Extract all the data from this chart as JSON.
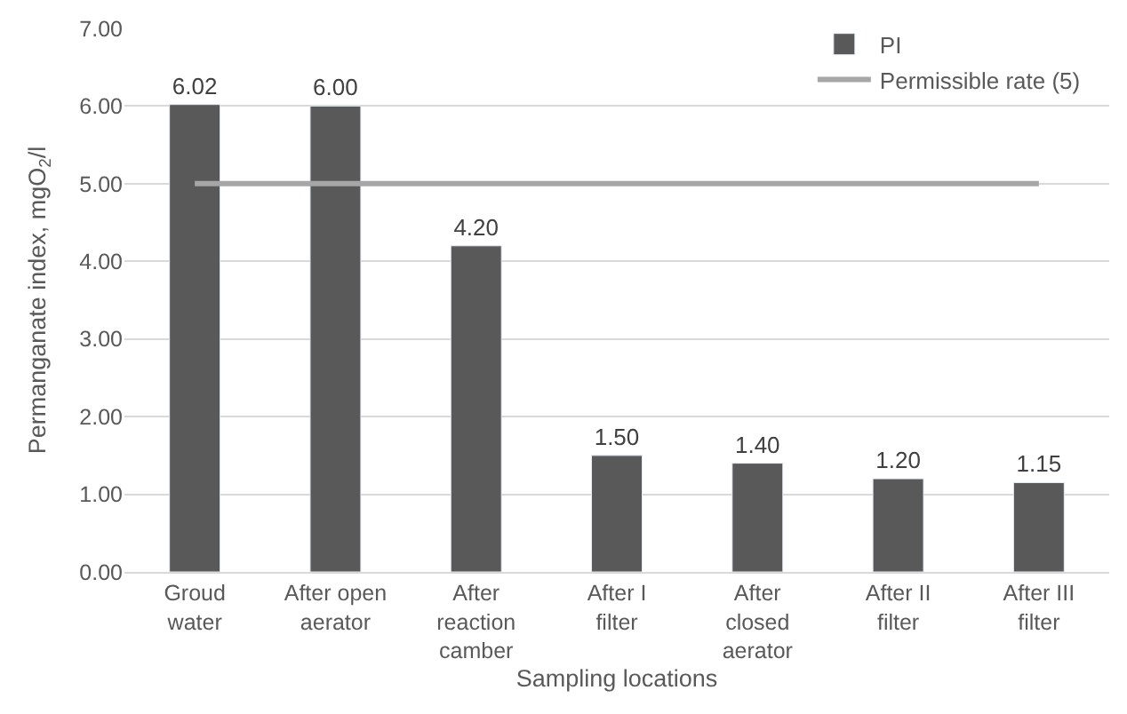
{
  "chart_data": {
    "type": "bar",
    "xlabel": "Sampling locations",
    "ylabel": "Permanganate index, mgO$_{2}$/l",
    "categories": [
      "Groud water",
      "After open aerator",
      "After reaction camber",
      "After I filter",
      "After closed aerator",
      "After II filter",
      "After III filter"
    ],
    "series": [
      {
        "name": "PI",
        "color": "#595959",
        "values": [
          6.02,
          6.0,
          4.2,
          1.5,
          1.4,
          1.2,
          1.15
        ],
        "value_labels": [
          "6.02",
          "6.00",
          "4.20",
          "1.50",
          "1.40",
          "1.20",
          "1.15"
        ]
      },
      {
        "name": "Permissible rate (5)",
        "type": "line",
        "color": "#a6a6a6",
        "values": [
          5,
          5,
          5,
          5,
          5,
          5,
          5
        ]
      }
    ],
    "ylim": [
      0,
      7
    ],
    "yticks": [
      {
        "value": 0,
        "label": "0.00"
      },
      {
        "value": 1,
        "label": "1.00"
      },
      {
        "value": 2,
        "label": "2.00"
      },
      {
        "value": 3,
        "label": "3.00"
      },
      {
        "value": 4,
        "label": "4.00"
      },
      {
        "value": 5,
        "label": "5.00"
      },
      {
        "value": 6,
        "label": "6.00"
      },
      {
        "value": 7,
        "label": "7.00"
      }
    ],
    "grid": "y",
    "legend": "top right",
    "marker": "none",
    "line_style": "solid"
  }
}
